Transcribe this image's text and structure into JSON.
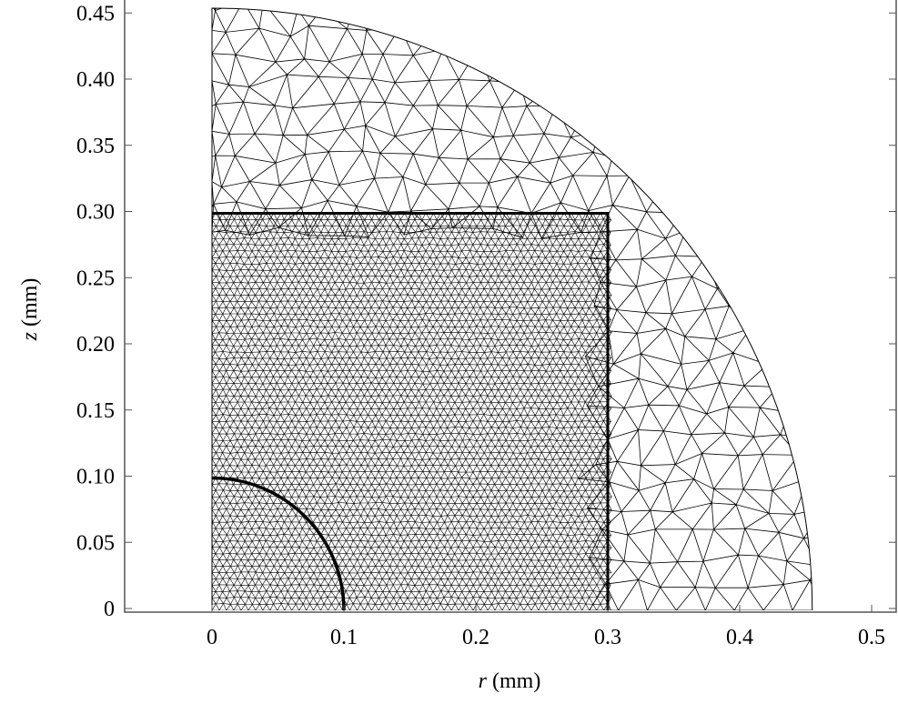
{
  "figure": {
    "xlabel_var": "r",
    "xlabel_unit": " (mm)",
    "ylabel_var": "z",
    "ylabel_unit": " (mm)",
    "xticks": [
      "0",
      "0.1",
      "0.2",
      "0.3",
      "0.4",
      "0.5"
    ],
    "xtick_values": [
      0,
      0.1,
      0.2,
      0.3,
      0.4,
      0.5
    ],
    "yticks": [
      "0",
      "0.05",
      "0.10",
      "0.15",
      "0.20",
      "0.25",
      "0.30",
      "0.35",
      "0.40",
      "0.45"
    ],
    "ytick_values": [
      0,
      0.05,
      0.1,
      0.15,
      0.2,
      0.25,
      0.3,
      0.35,
      0.4,
      0.45
    ],
    "xlim": [
      -0.066,
      0.52
    ],
    "ylim": [
      0,
      0.457
    ],
    "inner_circle_radius": 0.1,
    "square_half_size": 0.3,
    "outer_arc_radius": 0.455,
    "line_color": "#000000"
  }
}
